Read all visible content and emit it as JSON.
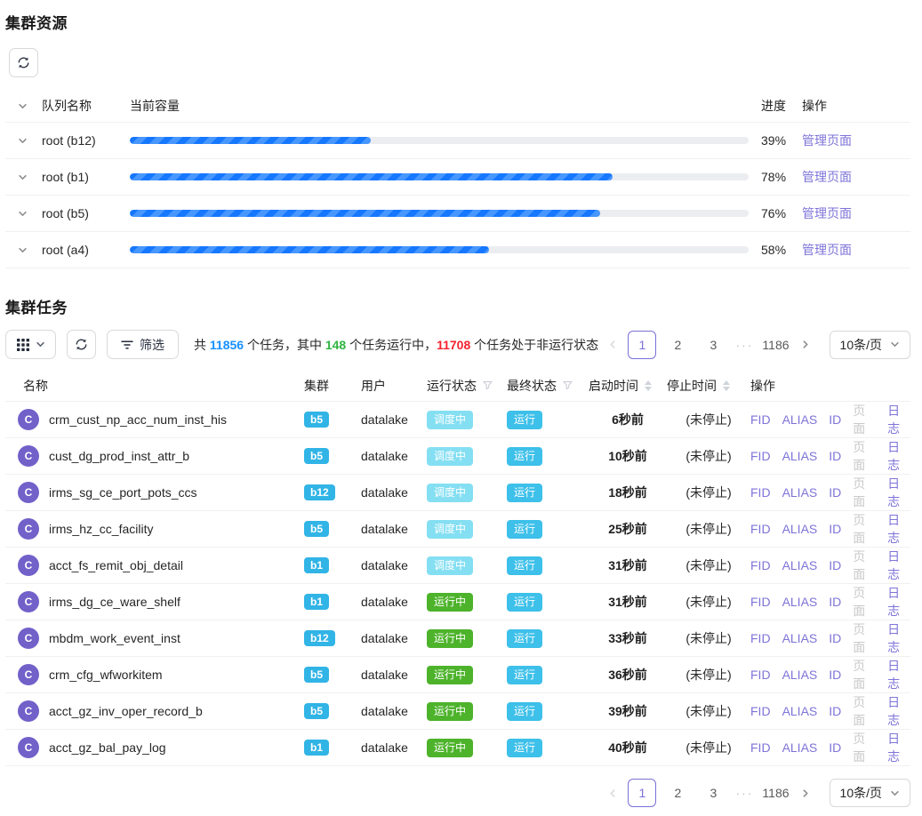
{
  "colors": {
    "progress_blue": "#1677ff",
    "link_purple": "#7e74d8",
    "badge_cyan": "#31b4e6",
    "tag_scheduling": "#85dff2",
    "tag_running": "#4db32b",
    "tag_final_run": "#3dc0e9",
    "stat_blue": "#1890ff",
    "stat_green": "#2eb540",
    "stat_red": "#f5222d"
  },
  "icons": {
    "refresh": "sync-icon",
    "grid": "app-grid-icon",
    "filter_lines": "filter-lines-icon",
    "funnel": "filter-funnel-icon",
    "sorter": "sort-carets-icon",
    "chevron_down": "chevron-down-icon",
    "chevron_left": "chevron-left-icon",
    "chevron_right": "chevron-right-icon"
  },
  "resources": {
    "title": "集群资源",
    "queue_table": {
      "headers": {
        "queue": "队列名称",
        "capacity": "当前容量",
        "progress": "进度",
        "action": "操作"
      },
      "rows": [
        {
          "name": "root (b12)",
          "value": 39,
          "percent": "39%",
          "action": "管理页面"
        },
        {
          "name": "root (b1)",
          "value": 78,
          "percent": "78%",
          "action": "管理页面"
        },
        {
          "name": "root (b5)",
          "value": 76,
          "percent": "76%",
          "action": "管理页面"
        },
        {
          "name": "root (a4)",
          "value": 58,
          "percent": "58%",
          "action": "管理页面"
        }
      ]
    }
  },
  "tasks": {
    "title": "集群任务",
    "toolbar": {
      "filter_label": "筛选"
    },
    "summary": {
      "seg1": "共 ",
      "total": "11856",
      "seg2": " 个任务，其中 ",
      "running": "148",
      "seg3": " 个任务运行中，",
      "non_running": "11708",
      "seg4": " 个任务处于非运行状态"
    },
    "pagination": {
      "pages": [
        "1",
        "2",
        "3"
      ],
      "current": "1",
      "ellipsis": "···",
      "last_page": "1186",
      "page_size": "10条/页"
    },
    "table": {
      "headers": {
        "name": "名称",
        "cluster": "集群",
        "user": "用户",
        "run_status": "运行状态",
        "final_status": "最终状态",
        "start_time": "启动时间",
        "stop_time": "停止时间",
        "ops": "操作"
      },
      "op_labels": [
        "FID",
        "ALIAS",
        "ID",
        "页面",
        "日志"
      ],
      "rows": [
        {
          "avatar": "C",
          "name": "crm_cust_np_acc_num_inst_his",
          "cluster": "b5",
          "user": "datalake",
          "run_status": "调度中",
          "run_class": "scheduling",
          "final_status": "运行",
          "start_time": "6秒前",
          "stop_time": "(未停止)"
        },
        {
          "avatar": "C",
          "name": "cust_dg_prod_inst_attr_b",
          "cluster": "b5",
          "user": "datalake",
          "run_status": "调度中",
          "run_class": "scheduling",
          "final_status": "运行",
          "start_time": "10秒前",
          "stop_time": "(未停止)"
        },
        {
          "avatar": "C",
          "name": "irms_sg_ce_port_pots_ccs",
          "cluster": "b12",
          "user": "datalake",
          "run_status": "调度中",
          "run_class": "scheduling",
          "final_status": "运行",
          "start_time": "18秒前",
          "stop_time": "(未停止)"
        },
        {
          "avatar": "C",
          "name": "irms_hz_cc_facility",
          "cluster": "b5",
          "user": "datalake",
          "run_status": "调度中",
          "run_class": "scheduling",
          "final_status": "运行",
          "start_time": "25秒前",
          "stop_time": "(未停止)"
        },
        {
          "avatar": "C",
          "name": "acct_fs_remit_obj_detail",
          "cluster": "b1",
          "user": "datalake",
          "run_status": "调度中",
          "run_class": "scheduling",
          "final_status": "运行",
          "start_time": "31秒前",
          "stop_time": "(未停止)"
        },
        {
          "avatar": "C",
          "name": "irms_dg_ce_ware_shelf",
          "cluster": "b1",
          "user": "datalake",
          "run_status": "运行中",
          "run_class": "running",
          "final_status": "运行",
          "start_time": "31秒前",
          "stop_time": "(未停止)"
        },
        {
          "avatar": "C",
          "name": "mbdm_work_event_inst",
          "cluster": "b12",
          "user": "datalake",
          "run_status": "运行中",
          "run_class": "running",
          "final_status": "运行",
          "start_time": "33秒前",
          "stop_time": "(未停止)"
        },
        {
          "avatar": "C",
          "name": "crm_cfg_wfworkitem",
          "cluster": "b5",
          "user": "datalake",
          "run_status": "运行中",
          "run_class": "running",
          "final_status": "运行",
          "start_time": "36秒前",
          "stop_time": "(未停止)"
        },
        {
          "avatar": "C",
          "name": "acct_gz_inv_oper_record_b",
          "cluster": "b5",
          "user": "datalake",
          "run_status": "运行中",
          "run_class": "running",
          "final_status": "运行",
          "start_time": "39秒前",
          "stop_time": "(未停止)"
        },
        {
          "avatar": "C",
          "name": "acct_gz_bal_pay_log",
          "cluster": "b1",
          "user": "datalake",
          "run_status": "运行中",
          "run_class": "running",
          "final_status": "运行",
          "start_time": "40秒前",
          "stop_time": "(未停止)"
        }
      ]
    }
  }
}
